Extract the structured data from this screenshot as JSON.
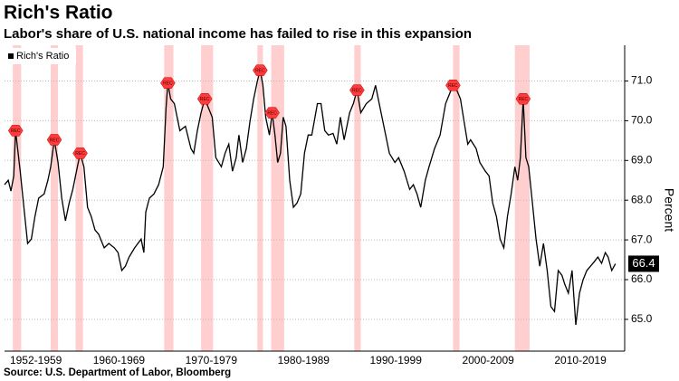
{
  "chart_data": {
    "type": "line",
    "title": "Rich's Ratio",
    "subtitle": "Labor's share of U.S. national income has failed to rise in this expansion",
    "y_axis_label": "Percent",
    "source": "Source: U.S. Department of Labor, Bloomberg",
    "legend": "top-left",
    "grid": true,
    "recession_label": "REC",
    "recession_color": "#ff3b3b",
    "recessions": [
      [
        1953.5,
        1954.4
      ],
      [
        1957.6,
        1958.4
      ],
      [
        1960.3,
        1961.1
      ],
      [
        1969.9,
        1970.9
      ],
      [
        1973.9,
        1975.2
      ],
      [
        1980.0,
        1980.6
      ],
      [
        1981.5,
        1982.9
      ],
      [
        1990.5,
        1991.2
      ],
      [
        2001.2,
        2001.9
      ],
      [
        2007.9,
        2009.5
      ]
    ],
    "xlim": [
      1952.6,
      2019.8
    ],
    "xticks": [
      {
        "value": 1956,
        "label": "1952-1959"
      },
      {
        "value": 1965,
        "label": "1960-1969"
      },
      {
        "value": 1975,
        "label": "1970-1979"
      },
      {
        "value": 1985,
        "label": "1980-1989"
      },
      {
        "value": 1995,
        "label": "1990-1999"
      },
      {
        "value": 2005,
        "label": "2000-2009"
      },
      {
        "value": 2015,
        "label": "2010-2019"
      }
    ],
    "ylim": [
      64.2,
      71.9
    ],
    "yticks": [
      {
        "value": 65,
        "label": "65.0"
      },
      {
        "value": 66,
        "label": "66.0"
      },
      {
        "value": 67,
        "label": "67.0"
      },
      {
        "value": 68,
        "label": "68.0"
      },
      {
        "value": 69,
        "label": "69.0"
      },
      {
        "value": 70,
        "label": "70.0"
      },
      {
        "value": 71,
        "label": "71.0"
      }
    ],
    "x": [
      1952.6,
      1953.0,
      1953.3,
      1953.6,
      1953.8,
      1954.3,
      1955.1,
      1955.5,
      1955.9,
      1956.3,
      1956.9,
      1957.3,
      1957.6,
      1958.0,
      1958.4,
      1958.8,
      1959.2,
      1959.6,
      1960.0,
      1960.5,
      1960.8,
      1961.2,
      1961.6,
      1962.0,
      1962.4,
      1962.8,
      1963.4,
      1963.9,
      1964.5,
      1964.9,
      1965.3,
      1965.7,
      1966.1,
      1966.7,
      1967.4,
      1967.7,
      1967.9,
      1968.3,
      1968.8,
      1969.3,
      1969.8,
      1970.1,
      1970.3,
      1970.6,
      1971.0,
      1971.6,
      1972.2,
      1972.8,
      1973.1,
      1973.5,
      1973.9,
      1974.3,
      1974.7,
      1975.1,
      1975.5,
      1976.1,
      1976.5,
      1976.9,
      1977.3,
      1977.7,
      1978.0,
      1978.4,
      1978.8,
      1979.2,
      1979.6,
      1980.0,
      1980.3,
      1980.6,
      1980.9,
      1981.3,
      1981.6,
      1981.9,
      1982.2,
      1982.5,
      1982.8,
      1983.1,
      1983.5,
      1983.9,
      1984.3,
      1984.7,
      1985.1,
      1985.5,
      1985.9,
      1986.5,
      1986.9,
      1987.3,
      1987.7,
      1988.2,
      1988.6,
      1989.0,
      1989.4,
      1990.0,
      1990.4,
      1990.8,
      1991.2,
      1991.8,
      1992.4,
      1992.8,
      1993.1,
      1993.7,
      1994.3,
      1994.9,
      1995.3,
      1995.9,
      1996.5,
      1996.9,
      1997.3,
      1997.7,
      1998.2,
      1998.6,
      1999.2,
      1999.8,
      2000.4,
      2000.8,
      2001.2,
      2001.6,
      2002.0,
      2002.4,
      2002.8,
      2003.1,
      2003.7,
      2004.1,
      2004.7,
      2005.1,
      2005.5,
      2005.9,
      2006.3,
      2006.7,
      2007.1,
      2007.5,
      2007.9,
      2008.2,
      2008.5,
      2008.8,
      2009.1,
      2009.4,
      2009.8,
      2010.2,
      2010.6,
      2011.0,
      2011.4,
      2011.8,
      2012.2,
      2012.6,
      2013.0,
      2013.3,
      2013.7,
      2014.1,
      2014.5,
      2014.9,
      2015.3,
      2015.7,
      2016.1,
      2016.5,
      2016.9,
      2017.3,
      2017.7,
      2018.0,
      2018.4,
      2018.8
    ],
    "series": [
      {
        "name": "Rich's Ratio",
        "color": "#000000",
        "values": [
          68.39,
          68.5,
          68.23,
          68.61,
          69.75,
          68.73,
          66.91,
          67.02,
          67.59,
          68.05,
          68.16,
          68.5,
          68.84,
          69.52,
          68.95,
          68.05,
          67.48,
          67.93,
          68.27,
          68.84,
          69.18,
          68.84,
          67.82,
          67.59,
          67.25,
          67.14,
          66.8,
          66.91,
          66.8,
          66.68,
          66.23,
          66.34,
          66.57,
          66.8,
          67.02,
          66.68,
          67.7,
          68.05,
          68.16,
          68.39,
          68.84,
          70.32,
          70.95,
          70.55,
          70.43,
          69.75,
          69.86,
          69.3,
          69.18,
          69.75,
          70.2,
          70.55,
          70.32,
          70.09,
          69.07,
          68.84,
          69.18,
          69.41,
          68.73,
          69.07,
          69.64,
          68.95,
          69.3,
          69.98,
          70.55,
          71.0,
          71.27,
          70.89,
          70.09,
          69.64,
          70.2,
          69.64,
          68.95,
          69.18,
          70.09,
          69.86,
          68.5,
          67.82,
          67.93,
          68.16,
          69.18,
          69.64,
          69.64,
          70.43,
          70.43,
          69.75,
          69.64,
          69.68,
          69.41,
          70.09,
          69.52,
          70.2,
          70.43,
          70.77,
          70.2,
          70.43,
          70.55,
          70.89,
          70.55,
          69.86,
          69.18,
          68.95,
          69.07,
          68.73,
          68.27,
          68.39,
          68.16,
          67.82,
          68.5,
          68.84,
          69.3,
          69.64,
          70.43,
          70.66,
          70.89,
          70.77,
          70.55,
          69.98,
          69.41,
          69.52,
          69.3,
          68.95,
          68.73,
          68.61,
          67.93,
          67.59,
          67.02,
          66.8,
          67.59,
          68.16,
          68.84,
          68.5,
          69.07,
          70.55,
          69.07,
          68.84,
          67.93,
          67.02,
          66.34,
          66.91,
          66.23,
          65.32,
          65.2,
          66.23,
          66.11,
          65.89,
          65.66,
          66.23,
          64.86,
          65.66,
          66.0,
          66.23,
          66.34,
          66.45,
          66.57,
          66.41,
          66.68,
          66.57,
          66.23,
          66.4
        ]
      }
    ]
  }
}
